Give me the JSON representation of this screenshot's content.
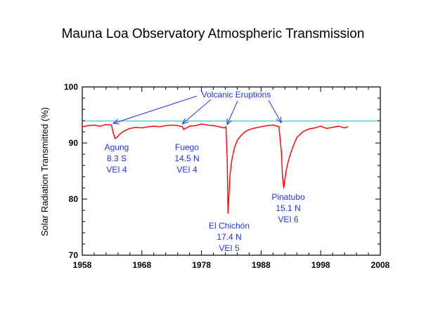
{
  "chart_data": {
    "type": "line",
    "title": "Mauna Loa Observatory Atmospheric Transmission",
    "xlabel": "",
    "ylabel": "Solar Radiation Transmitted (%)",
    "xlim": [
      1958,
      2008
    ],
    "ylim": [
      70,
      100
    ],
    "xticks": [
      1958,
      1968,
      1978,
      1988,
      1998,
      2008
    ],
    "yticks": [
      70,
      80,
      90,
      100
    ],
    "grid": false,
    "reference_line": {
      "y": 93.9,
      "color": "#00c8c8"
    },
    "series": [
      {
        "color": "#ff0000",
        "x": [
          1958.0,
          1959.0,
          1960.0,
          1961.0,
          1962.0,
          1962.9,
          1963.2,
          1963.5,
          1963.9,
          1964.3,
          1964.8,
          1965.3,
          1966.0,
          1967.0,
          1968.0,
          1969.0,
          1970.0,
          1971.0,
          1972.0,
          1973.0,
          1974.0,
          1974.8,
          1975.0,
          1975.5,
          1976.0,
          1977.0,
          1978.0,
          1979.0,
          1980.0,
          1981.0,
          1981.8,
          1982.1,
          1982.3,
          1982.45,
          1982.6,
          1982.8,
          1983.1,
          1983.5,
          1984.0,
          1984.6,
          1985.3,
          1986.0,
          1987.0,
          1988.0,
          1989.0,
          1990.0,
          1991.0,
          1991.4,
          1991.6,
          1991.8,
          1992.0,
          1992.2,
          1992.5,
          1992.9,
          1993.4,
          1994.0,
          1995.0,
          1996.0,
          1997.0,
          1998.0,
          1999.0,
          2000.0,
          2001.0,
          2002.0,
          2002.5
        ],
        "y": [
          92.9,
          93.1,
          93.2,
          93.0,
          93.3,
          93.2,
          91.8,
          90.8,
          91.1,
          91.6,
          92.0,
          92.3,
          92.6,
          92.8,
          92.7,
          92.9,
          93.0,
          92.9,
          93.1,
          93.2,
          93.1,
          92.9,
          92.4,
          92.7,
          93.0,
          93.1,
          93.4,
          93.2,
          93.1,
          92.9,
          92.7,
          92.9,
          87.5,
          77.5,
          80.5,
          84.5,
          87.0,
          89.0,
          90.5,
          91.3,
          92.0,
          92.4,
          92.7,
          92.9,
          93.1,
          93.2,
          92.9,
          88.5,
          84.0,
          82.0,
          83.5,
          85.0,
          86.5,
          88.0,
          89.5,
          91.0,
          92.0,
          92.5,
          92.7,
          93.0,
          92.6,
          92.8,
          93.0,
          92.7,
          92.9
        ]
      }
    ],
    "annotations": {
      "header": "Volcanic Eruptions",
      "eruptions": [
        {
          "name": "Agung",
          "lat": "8.3 S",
          "vei": "VEI  4",
          "year": 1963.2,
          "level": 93.5
        },
        {
          "name": "Fuego",
          "lat": "14.5 N",
          "vei": "VEI  4",
          "year": 1974.8,
          "level": 93.4
        },
        {
          "name": "El Chichón",
          "lat": "17.4 N",
          "vei": "VEI  5",
          "year": 1982.3,
          "level": 93.3
        },
        {
          "name": "Pinatubo",
          "lat": "15.1 N",
          "vei": "VEI  6",
          "year": 1991.4,
          "level": 93.6
        }
      ]
    }
  }
}
